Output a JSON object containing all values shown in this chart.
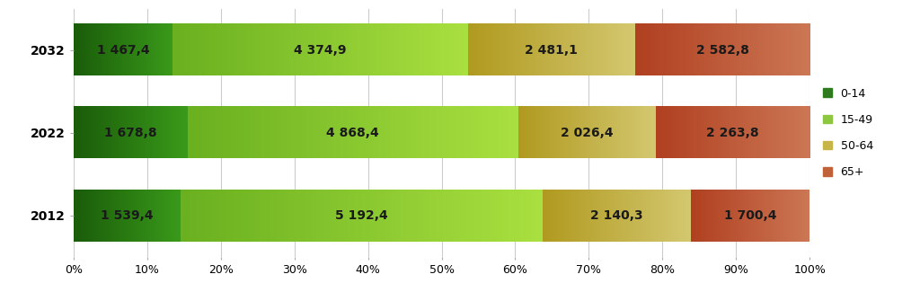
{
  "years": [
    "2032",
    "2022",
    "2012"
  ],
  "segments": {
    "0-14": [
      1467.4,
      1678.8,
      1539.4
    ],
    "15-49": [
      4374.9,
      4868.4,
      5192.4
    ],
    "50-64": [
      2481.1,
      2026.4,
      2140.3
    ],
    "65+": [
      2582.8,
      2263.8,
      1700.4
    ]
  },
  "colors_left": {
    "0-14": "#1a5c0a",
    "15-49": "#6ab020",
    "50-64": "#b09a20",
    "65+": "#b04020"
  },
  "colors_right": {
    "0-14": "#3a9a1a",
    "15-49": "#aae040",
    "50-64": "#d4c870",
    "65+": "#cc7755"
  },
  "labels": [
    "0-14",
    "15-49",
    "50-64",
    "65+"
  ],
  "legend_colors": {
    "0-14": "#2d7a1f",
    "15-49": "#8dc63f",
    "50-64": "#c8b54a",
    "65+": "#c0613a"
  },
  "bar_height": 0.62,
  "background_color": "#ffffff",
  "plot_bg_color": "#ffffff",
  "text_color": "#1a1a1a",
  "grid_color": "#cccccc",
  "label_fontsize": 10,
  "tick_fontsize": 9,
  "legend_fontsize": 9,
  "ytick_fontsize": 10
}
